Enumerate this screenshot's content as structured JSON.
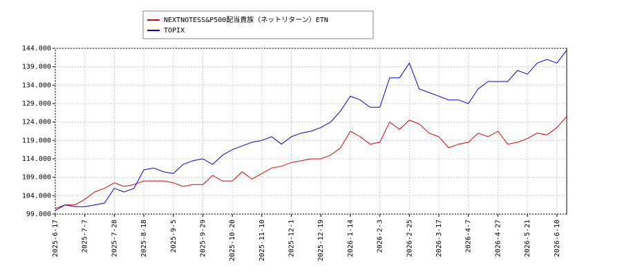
{
  "chart_data": {
    "type": "line",
    "categories": [
      "2025-6-17",
      null,
      null,
      "2025-7-7",
      null,
      null,
      "2025-7-28",
      null,
      null,
      "2025-8-18",
      null,
      null,
      "2025-9-5",
      null,
      null,
      "2025-9-29",
      null,
      null,
      "2025-10-20",
      null,
      null,
      "2025-11-10",
      null,
      null,
      "2025-12-1",
      null,
      null,
      "2025-12-19",
      null,
      null,
      "2026-1-14",
      null,
      null,
      "2026-2-3",
      null,
      null,
      "2026-2-25",
      null,
      null,
      "2026-3-17",
      null,
      null,
      "2026-4-7",
      null,
      null,
      "2026-4-27",
      null,
      null,
      "2026-5-21",
      null,
      null,
      "2026-6-10",
      null
    ],
    "series": [
      {
        "name": "NEXTNOTESS&P500配当貴族（ネットリターン）ETN",
        "color": "#dd0000",
        "values": [
          100.5,
          101.5,
          101.5,
          103,
          105,
          106,
          107.5,
          106.5,
          107,
          108,
          108,
          108,
          107.5,
          106.5,
          107,
          107,
          109.5,
          108,
          108,
          110.5,
          108.5,
          110,
          111.5,
          112,
          113,
          113.5,
          114,
          114,
          115,
          117,
          121.5,
          120,
          118,
          118.5,
          124,
          122,
          124.5,
          123.5,
          121,
          120,
          117,
          118,
          118.5,
          121,
          120,
          121.5,
          118,
          118.5,
          119.5,
          121,
          120.5,
          122.5,
          125.5
        ]
      },
      {
        "name": "TOPIX",
        "color": "#0000cc",
        "values": [
          100,
          101.5,
          101,
          101,
          101.5,
          102,
          106,
          105,
          106,
          111,
          111.5,
          110.5,
          110,
          112.5,
          113.5,
          114,
          112.5,
          115,
          116.5,
          117.5,
          118.5,
          119,
          120,
          118,
          120,
          121,
          121.5,
          122.5,
          124,
          127,
          131,
          130,
          128,
          128,
          136,
          136,
          140,
          133,
          132,
          131,
          130,
          130,
          129,
          133,
          135,
          135,
          135,
          138,
          137,
          140,
          141,
          140,
          143.5
        ]
      }
    ],
    "ylim": [
      99,
      144
    ],
    "yticks": [
      {
        "value": 99,
        "label": "99.000"
      },
      {
        "value": 104,
        "label": "104.000"
      },
      {
        "value": 109,
        "label": "109.000"
      },
      {
        "value": 114,
        "label": "114.000"
      },
      {
        "value": 119,
        "label": "119.000"
      },
      {
        "value": 124,
        "label": "124.000"
      },
      {
        "value": 129,
        "label": "129.000"
      },
      {
        "value": 134,
        "label": "134.000"
      },
      {
        "value": 139,
        "label": "139.000"
      },
      {
        "value": 144,
        "label": "144.000"
      }
    ],
    "grid": true,
    "legend": "top"
  }
}
